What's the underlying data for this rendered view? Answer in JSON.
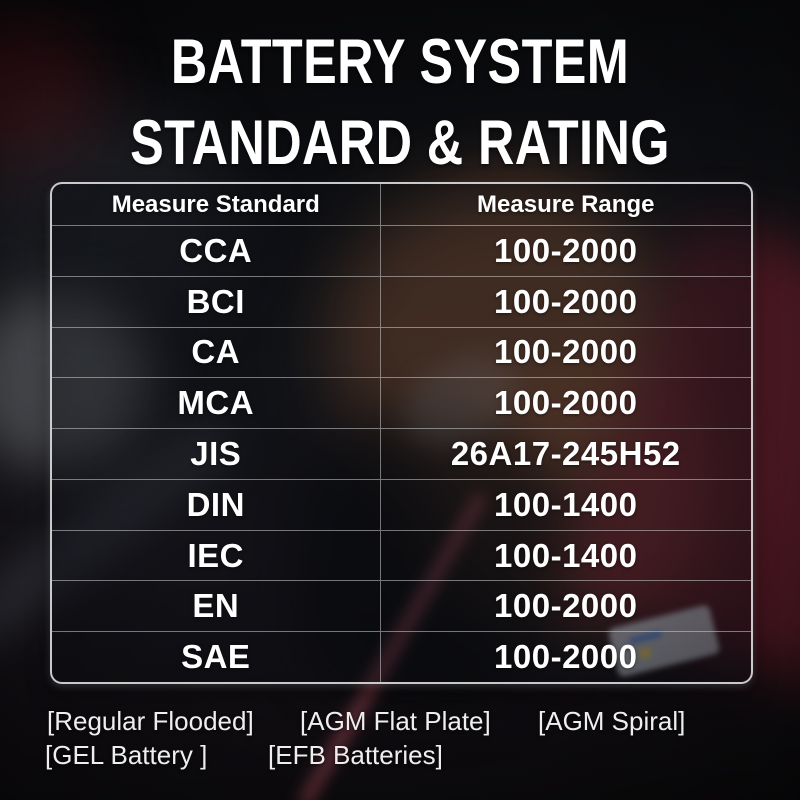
{
  "title": {
    "line1": "BATTERY SYSTEM",
    "line2": "STANDARD & RATING"
  },
  "table": {
    "headers": [
      "Measure Standard",
      "Measure Range"
    ],
    "rows": [
      {
        "standard": "CCA",
        "range": "100-2000"
      },
      {
        "standard": "BCI",
        "range": "100-2000"
      },
      {
        "standard": "CA",
        "range": "100-2000"
      },
      {
        "standard": "MCA",
        "range": "100-2000"
      },
      {
        "standard": "JIS",
        "range": "26A17-245H52"
      },
      {
        "standard": "DIN",
        "range": "100-1400"
      },
      {
        "standard": "IEC",
        "range": "100-1400"
      },
      {
        "standard": "EN",
        "range": "100-2000"
      },
      {
        "standard": "SAE",
        "range": "100-2000"
      }
    ]
  },
  "battery_types": {
    "items": [
      "[Regular Flooded]",
      "[AGM Flat Plate]",
      "[AGM Spiral]",
      "[GEL Battery ]",
      "[EFB Batteries]"
    ]
  },
  "colors": {
    "text_white": "#ffffff",
    "table_border_gray": "#e4e4e6",
    "background_dark": "#0b0c0f",
    "battery_red": "#872130",
    "hand_tan": "#c47848"
  },
  "chart_data": {
    "type": "table",
    "title": "BATTERY SYSTEM STANDARD & RATING",
    "columns": [
      "Measure Standard",
      "Measure Range"
    ],
    "rows": [
      [
        "CCA",
        "100-2000"
      ],
      [
        "BCI",
        "100-2000"
      ],
      [
        "CA",
        "100-2000"
      ],
      [
        "MCA",
        "100-2000"
      ],
      [
        "JIS",
        "26A17-245H52"
      ],
      [
        "DIN",
        "100-1400"
      ],
      [
        "IEC",
        "100-1400"
      ],
      [
        "EN",
        "100-2000"
      ],
      [
        "SAE",
        "100-2000"
      ]
    ],
    "footnotes": [
      "[Regular Flooded]",
      "[AGM Flat Plate]",
      "[AGM Spiral]",
      "[GEL Battery ]",
      "[EFB Batteries]"
    ]
  }
}
